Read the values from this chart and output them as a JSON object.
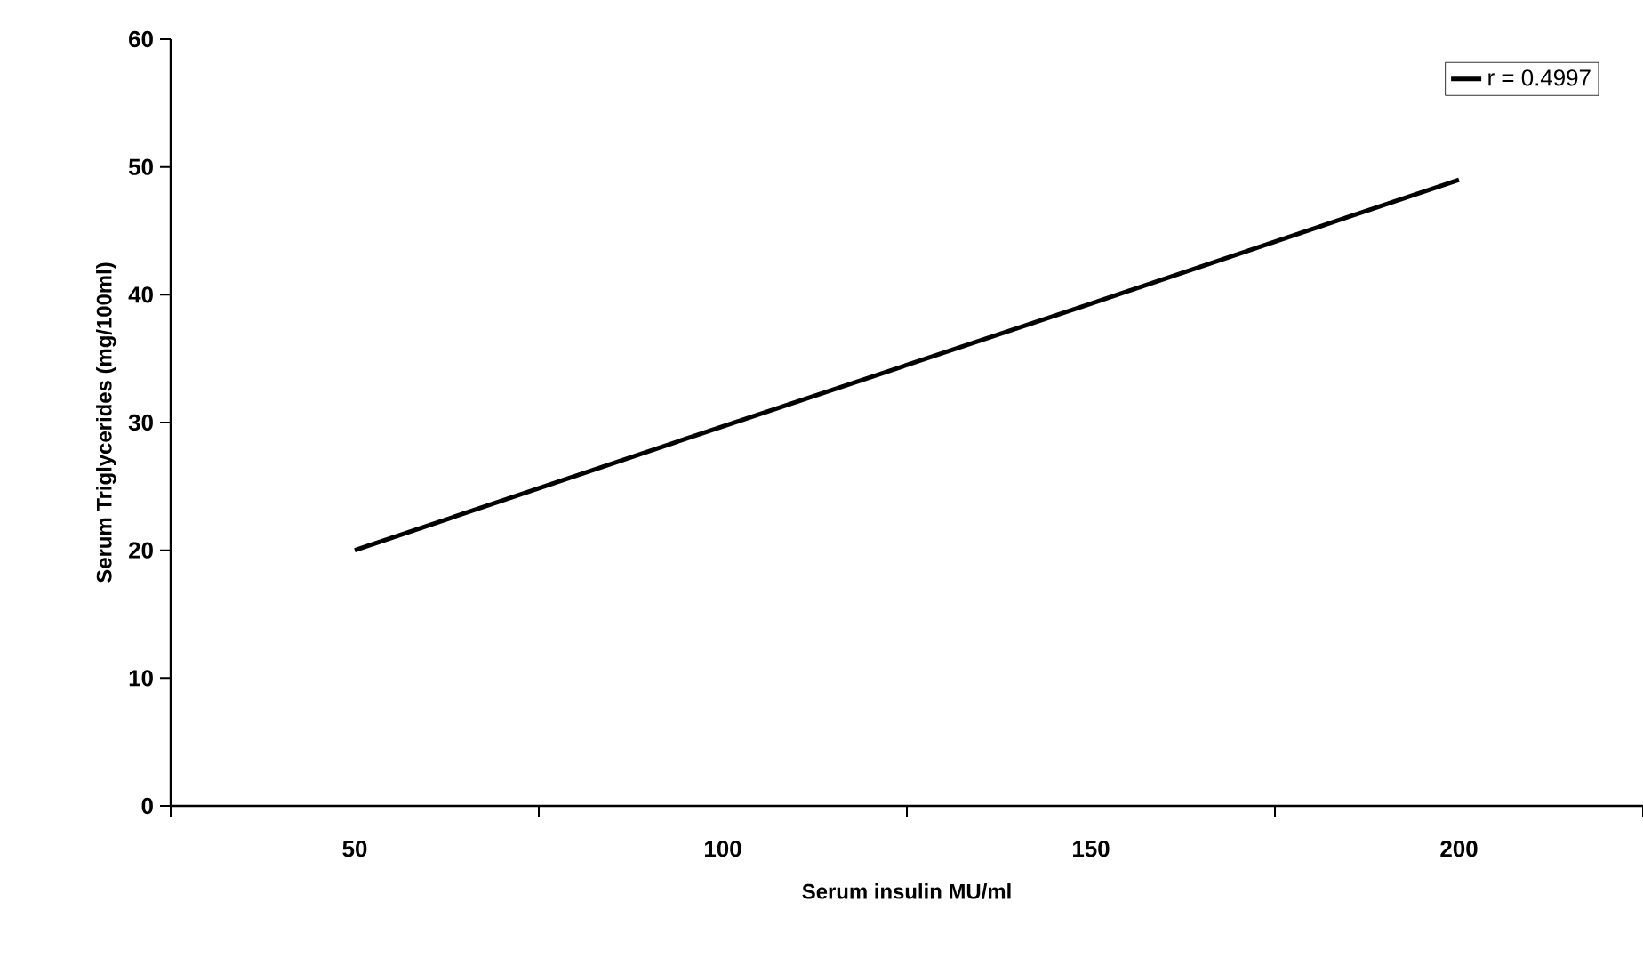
{
  "chart_data": {
    "type": "line",
    "xlabel": "Serum insulin MU/ml",
    "ylabel": "Serum Triglycerides (mg/100ml)",
    "categories": [
      "50",
      "100",
      "150",
      "200"
    ],
    "series": [
      {
        "name": "r = 0.4997",
        "color": "#000000",
        "values": [
          20,
          29.7,
          39.3,
          49
        ]
      }
    ],
    "ylim": [
      0,
      60
    ],
    "yticks": [
      0,
      10,
      20,
      30,
      40,
      50,
      60
    ],
    "legend": "top right",
    "marker": "none"
  }
}
